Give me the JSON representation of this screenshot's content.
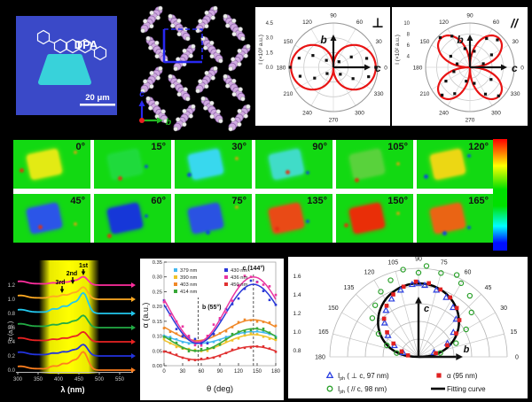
{
  "microscopy": {
    "title": "DPA",
    "scale_bar": "20 μm",
    "bg_color": "#3a49c8",
    "crystal_color": "#38d2da"
  },
  "packing": {
    "axis_up": "c",
    "axis_right": "b",
    "molecule_color": "#cfa8e0",
    "unit_cell_color": "#2828f0"
  },
  "anglemaps": {
    "bg_color": "#12d912",
    "cells": [
      {
        "label": "0°",
        "crystal": "#e3ea14"
      },
      {
        "label": "15°",
        "crystal": "#30dd70"
      },
      {
        "label": "30°",
        "crystal": "#38d8ee"
      },
      {
        "label": "90°",
        "crystal": "#40dcc8"
      },
      {
        "label": "105°",
        "crystal": "#59d23c"
      },
      {
        "label": "120°",
        "crystal": "#ecd714"
      },
      {
        "label": "45°",
        "crystal": "#2b55e8"
      },
      {
        "label": "60°",
        "crystal": "#1637d8"
      },
      {
        "label": "75°",
        "crystal": "#2a52e2"
      },
      {
        "label": "135°",
        "crystal": "#e94a16"
      },
      {
        "label": "150°",
        "crystal": "#e92e08"
      },
      {
        "label": "165°",
        "crystal": "#ea6414"
      }
    ],
    "colorbar_colors": [
      "#ff0000",
      "#ff7a00",
      "#ffff00",
      "#00e000",
      "#00ffff",
      "#0010ff"
    ]
  },
  "chart_data": [
    {
      "id": "polarization_perp",
      "type": "polar",
      "title": "⊥",
      "ylabel": "I (×10³ a.u.)",
      "rtick_labels": [
        "0.0",
        "1.5",
        "3.0",
        "4.5"
      ],
      "rmin": 0,
      "rmax": 4.5,
      "lobes": 2,
      "angle_labels": [
        "0",
        "30",
        "60",
        "90",
        "120",
        "150",
        "180",
        "210",
        "240",
        "270",
        "300",
        "330"
      ],
      "axis_up": "b",
      "axis_right": "c",
      "curve_color": "#e81414",
      "curve_model": "I(θ)=A·|cosθ| two lobes along c (0°/180°)",
      "curve_amplitude": 4.3,
      "points": [
        [
          0,
          4.3
        ],
        [
          15,
          3.5
        ],
        [
          30,
          2.1
        ],
        [
          45,
          0.8
        ],
        [
          135,
          1.0
        ],
        [
          150,
          2.4
        ],
        [
          165,
          3.6
        ],
        [
          180,
          4.4
        ],
        [
          195,
          3.5
        ],
        [
          210,
          2.2
        ],
        [
          225,
          0.9
        ],
        [
          315,
          1.0
        ],
        [
          330,
          2.3
        ],
        [
          345,
          3.7
        ]
      ]
    },
    {
      "id": "polarization_par",
      "type": "polar",
      "title": "//",
      "ylabel": "I (×10² a.u.)",
      "rtick_labels": [
        "4",
        "6",
        "8",
        "10"
      ],
      "rmin": 2,
      "rmax": 10,
      "lobes": 4,
      "angle_labels": [
        "0",
        "30",
        "60",
        "90",
        "120",
        "150",
        "180",
        "210",
        "240",
        "270",
        "300",
        "330"
      ],
      "axis_up": "b",
      "axis_right": "c",
      "curve_color": "#e81414",
      "curve_model": "four-petal I(θ)=A·|sin2θ|, petals at 45°,135°,225°,315°",
      "curve_amplitude": 9.4,
      "points": [
        [
          15,
          4.5
        ],
        [
          30,
          6.5
        ],
        [
          45,
          9.0
        ],
        [
          60,
          8.0
        ],
        [
          75,
          5.0
        ],
        [
          90,
          4.2
        ],
        [
          105,
          5.5
        ],
        [
          120,
          8.5
        ],
        [
          135,
          9.6
        ],
        [
          150,
          6.0
        ],
        [
          165,
          4.4
        ],
        [
          195,
          5.0
        ],
        [
          210,
          7.0
        ],
        [
          225,
          9.1
        ],
        [
          240,
          7.5
        ],
        [
          255,
          4.6
        ],
        [
          285,
          5.0
        ],
        [
          300,
          7.6
        ],
        [
          315,
          9.3
        ],
        [
          330,
          6.4
        ]
      ]
    },
    {
      "id": "absorption_spectra",
      "type": "line",
      "xlabel": "λ (nm)",
      "ylabel": "α (a.u.)",
      "xtick_labels": [
        "300",
        "350",
        "400",
        "450",
        "500",
        "550"
      ],
      "ytick_labels": [
        "1.2",
        "1.0",
        "0.8",
        "0.6",
        "0.4",
        "0.2",
        "0.0"
      ],
      "peak_labels": [
        "3rd",
        "2nd",
        "1st"
      ],
      "band_color": "#ffff00",
      "series": [
        {
          "color": "#ff2e9e",
          "offset": 1.2,
          "rel_amp": 0.55
        },
        {
          "color": "#ffaa22",
          "offset": 1.0,
          "rel_amp": 0.8
        },
        {
          "color": "#22c8ee",
          "offset": 0.8,
          "rel_amp": 1.35
        },
        {
          "color": "#22aa44",
          "offset": 0.6,
          "rel_amp": 0.8
        },
        {
          "color": "#e82222",
          "offset": 0.4,
          "rel_amp": 0.65
        },
        {
          "color": "#2233dd",
          "offset": 0.2,
          "rel_amp": 0.75
        },
        {
          "color": "#ff7f1e",
          "offset": 0.0,
          "rel_amp": 1.2
        }
      ]
    },
    {
      "id": "alpha_vs_theta",
      "type": "line+scatter",
      "xlabel": "θ (deg)",
      "ylabel": "α (a.u.)",
      "xtick_labels": [
        "0",
        "30",
        "60",
        "90",
        "120",
        "150",
        "180"
      ],
      "ytick_labels": [
        "0.00",
        "0.05",
        "0.10",
        "0.15",
        "0.20",
        "0.25",
        "0.30",
        "0.35"
      ],
      "ylim": [
        0,
        0.35
      ],
      "min_deg": 55,
      "max_deg": 144,
      "annotation_b": "b (55°)",
      "annotation_c": "c (144°)",
      "series": [
        {
          "name": "379 nm",
          "color": "#44b8f0",
          "min": 0.075,
          "max": 0.115
        },
        {
          "name": "390 nm",
          "color": "#f0c22a",
          "min": 0.05,
          "max": 0.105
        },
        {
          "name": "403 nm",
          "color": "#f08828",
          "min": 0.085,
          "max": 0.155
        },
        {
          "name": "414 nm",
          "color": "#37a837",
          "min": 0.05,
          "max": 0.125
        },
        {
          "name": "430 nm",
          "color": "#2a38d8",
          "min": 0.075,
          "max": 0.275
        },
        {
          "name": "436 nm",
          "color": "#ea35a0",
          "min": 0.08,
          "max": 0.3
        },
        {
          "name": "450 nm",
          "color": "#e03030",
          "min": 0.02,
          "max": 0.065
        }
      ]
    },
    {
      "id": "photocurrent_polar",
      "type": "polar-semi",
      "angle_labels": [
        "0",
        "15",
        "30",
        "45",
        "60",
        "75",
        "90",
        "105",
        "120",
        "135",
        "150",
        "165",
        "180"
      ],
      "rtick_labels": [
        "0.8",
        "1.0",
        "1.2",
        "1.4",
        "1.6"
      ],
      "axis_up": "c",
      "axis_right": "b",
      "fit_color": "#000000",
      "fit_peak": 1.43,
      "legend": [
        {
          "marker": "triangle-open",
          "color": "#2a3fe0",
          "prefix": "I",
          "sub": "ph",
          "rest": " ( ⊥ c, 97 nm)"
        },
        {
          "marker": "circle-open",
          "color": "#2aa02a",
          "prefix": "I",
          "sub": "ph",
          "rest": " ( // c, 98 nm)"
        },
        {
          "marker": "square",
          "color": "#e02020",
          "prefix": "α",
          "sub": "",
          "rest": " (95 nm)"
        },
        {
          "marker": "line",
          "color": "#000000",
          "prefix": "",
          "sub": "",
          "rest": "Fitting curve"
        }
      ],
      "series": {
        "perp": [
          [
            15,
            0.78
          ],
          [
            25,
            0.96
          ],
          [
            35,
            1.08
          ],
          [
            45,
            1.2
          ],
          [
            55,
            1.28
          ],
          [
            65,
            1.34
          ],
          [
            75,
            1.38
          ],
          [
            85,
            1.41
          ],
          [
            90,
            1.43
          ],
          [
            95,
            1.42
          ],
          [
            105,
            1.38
          ],
          [
            115,
            1.32
          ],
          [
            125,
            1.24
          ],
          [
            135,
            1.14
          ],
          [
            145,
            1.02
          ],
          [
            155,
            0.9
          ],
          [
            165,
            0.78
          ]
        ],
        "par": [
          [
            10,
            0.85
          ],
          [
            20,
            1.05
          ],
          [
            30,
            1.22
          ],
          [
            40,
            1.38
          ],
          [
            50,
            1.5
          ],
          [
            60,
            1.56
          ],
          [
            65,
            1.62
          ],
          [
            75,
            1.58
          ],
          [
            85,
            1.63
          ],
          [
            90,
            1.55
          ],
          [
            100,
            1.6
          ],
          [
            110,
            1.52
          ],
          [
            120,
            1.45
          ],
          [
            130,
            1.36
          ],
          [
            140,
            1.28
          ],
          [
            150,
            1.12
          ],
          [
            160,
            0.98
          ],
          [
            170,
            0.85
          ]
        ],
        "alpha": [
          [
            12,
            0.8
          ],
          [
            22,
            0.95
          ],
          [
            32,
            1.1
          ],
          [
            42,
            1.22
          ],
          [
            52,
            1.3
          ],
          [
            62,
            1.36
          ],
          [
            72,
            1.4
          ],
          [
            82,
            1.44
          ],
          [
            92,
            1.45
          ],
          [
            102,
            1.41
          ],
          [
            112,
            1.36
          ],
          [
            122,
            1.28
          ],
          [
            132,
            1.18
          ],
          [
            142,
            1.05
          ],
          [
            152,
            0.92
          ],
          [
            162,
            0.8
          ],
          [
            172,
            0.72
          ]
        ]
      }
    }
  ]
}
